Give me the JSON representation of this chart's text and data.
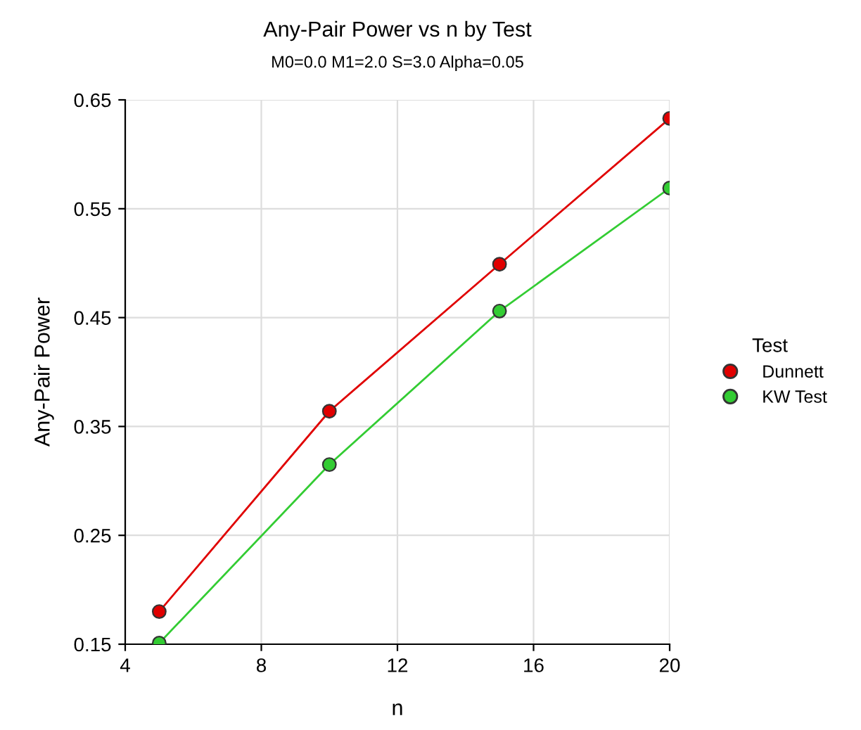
{
  "chart_data": {
    "type": "line",
    "title": "Any-Pair Power vs n by Test",
    "subtitle": "M0=0.0 M1=2.0 S=3.0 Alpha=0.05",
    "xlabel": "n",
    "ylabel": "Any-Pair Power",
    "legend_title": "Test",
    "x": [
      5,
      10,
      15,
      20
    ],
    "series": [
      {
        "name": "Dunnett",
        "color": "#e00000",
        "values": [
          0.18,
          0.364,
          0.499,
          0.633
        ]
      },
      {
        "name": "KW Test",
        "color": "#33cc33",
        "values": [
          0.151,
          0.315,
          0.456,
          0.569
        ]
      }
    ],
    "xlim": [
      4,
      20
    ],
    "xticks": [
      4,
      8,
      12,
      16,
      20
    ],
    "ylim": [
      0.15,
      0.65
    ],
    "yticks": [
      0.15,
      0.25,
      0.35,
      0.45,
      0.55,
      0.65
    ],
    "grid": true,
    "legend": "right",
    "marker": "circle",
    "line_style": "solid"
  }
}
